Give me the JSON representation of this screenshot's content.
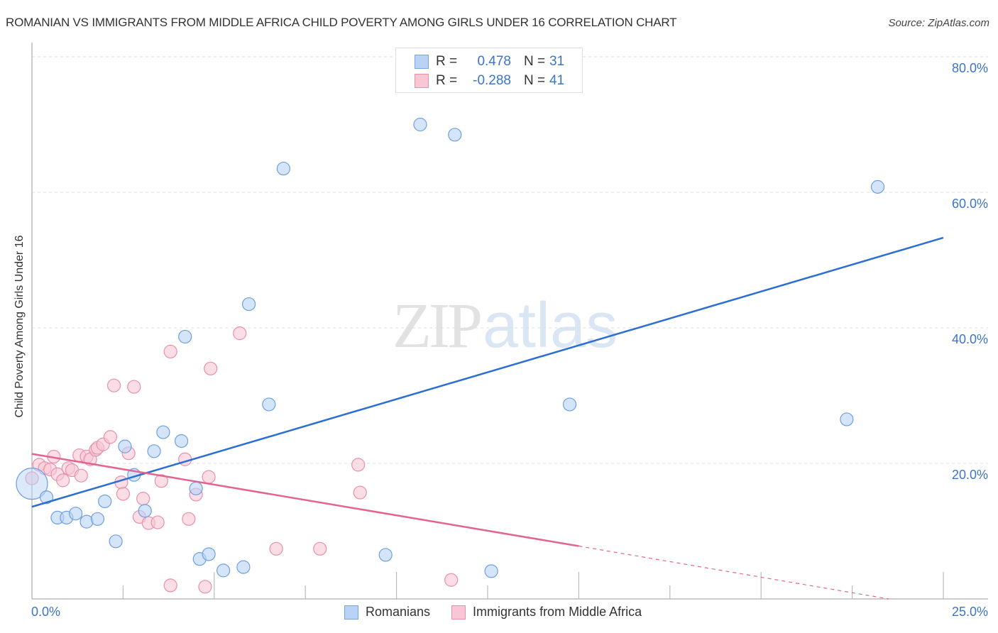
{
  "header": {
    "title": "ROMANIAN VS IMMIGRANTS FROM MIDDLE AFRICA CHILD POVERTY AMONG GIRLS UNDER 16 CORRELATION CHART",
    "source": "Source: ZipAtlas.com"
  },
  "legend_box": {
    "rows": [
      {
        "r_label": "R =",
        "r_value": "0.478",
        "n_label": "N =",
        "n_value": "31",
        "color": "#b9d3f5",
        "border": "#7aa6e0"
      },
      {
        "r_label": "R =",
        "r_value": "-0.288",
        "n_label": "N =",
        "n_value": "41",
        "color": "#f9c6d5",
        "border": "#e890ab"
      }
    ]
  },
  "axes": {
    "ylabel": "Child Poverty Among Girls Under 16",
    "yticks": [
      "80.0%",
      "60.0%",
      "40.0%",
      "20.0%"
    ],
    "xtick_left": "0.0%",
    "xtick_right": "25.0%"
  },
  "bottom_legend": {
    "series": [
      {
        "label": "Romanians",
        "color": "#b9d3f5",
        "border": "#7aa6e0"
      },
      {
        "label": "Immigrants from Middle Africa",
        "color": "#f9c6d5",
        "border": "#e890ab"
      }
    ]
  },
  "watermark": {
    "zip": "ZIP",
    "atlas": "atlas"
  },
  "colors": {
    "blue_line": "#2c6fd1",
    "pink_line": "#e36490",
    "blue_fill": "#b9d3f5",
    "blue_stroke": "#6e9fe0",
    "pink_fill": "#f9c6d5",
    "pink_stroke": "#e890ab",
    "tick_text": "#3b74c8"
  },
  "chart_data": {
    "type": "scatter",
    "title": "ROMANIAN VS IMMIGRANTS FROM MIDDLE AFRICA CHILD POVERTY AMONG GIRLS UNDER 16 CORRELATION CHART",
    "xlabel": "",
    "ylabel": "Child Poverty Among Girls Under 16",
    "xlim": [
      0,
      25
    ],
    "ylim": [
      0,
      80
    ],
    "x_unit": "%",
    "y_unit": "%",
    "grid": "horizontal dashed",
    "legend_position": "bottom-center",
    "series": [
      {
        "name": "Romanians",
        "R": 0.478,
        "N": 31,
        "points": [
          [
            0.0,
            17.0
          ],
          [
            0.4,
            15.0
          ],
          [
            0.7,
            12.0
          ],
          [
            0.95,
            12.0
          ],
          [
            1.2,
            12.6
          ],
          [
            1.5,
            11.4
          ],
          [
            1.8,
            11.8
          ],
          [
            2.0,
            14.4
          ],
          [
            2.3,
            8.5
          ],
          [
            2.55,
            22.5
          ],
          [
            2.8,
            18.3
          ],
          [
            3.1,
            13.0
          ],
          [
            3.35,
            21.8
          ],
          [
            3.6,
            24.6
          ],
          [
            4.1,
            23.3
          ],
          [
            4.2,
            38.7
          ],
          [
            4.5,
            16.3
          ],
          [
            4.6,
            5.9
          ],
          [
            4.85,
            6.6
          ],
          [
            5.25,
            4.2
          ],
          [
            5.8,
            4.7
          ],
          [
            5.95,
            43.5
          ],
          [
            6.5,
            28.7
          ],
          [
            6.9,
            63.5
          ],
          [
            9.7,
            6.5
          ],
          [
            10.65,
            70.0
          ],
          [
            11.6,
            68.5
          ],
          [
            12.6,
            4.1
          ],
          [
            14.75,
            28.7
          ],
          [
            22.35,
            26.5
          ],
          [
            23.2,
            60.8
          ]
        ],
        "trendline": {
          "x": [
            0,
            25
          ],
          "y": [
            13.6,
            53.3
          ]
        }
      },
      {
        "name": "Immigrants from Middle Africa",
        "R": -0.288,
        "N": 41,
        "points": [
          [
            0.0,
            17.8
          ],
          [
            0.2,
            19.8
          ],
          [
            0.35,
            19.3
          ],
          [
            0.5,
            19.1
          ],
          [
            0.6,
            21.0
          ],
          [
            0.7,
            18.4
          ],
          [
            0.85,
            17.5
          ],
          [
            1.0,
            19.3
          ],
          [
            1.1,
            19.0
          ],
          [
            1.3,
            21.2
          ],
          [
            1.35,
            18.2
          ],
          [
            1.5,
            21.0
          ],
          [
            1.6,
            20.6
          ],
          [
            1.75,
            22.0
          ],
          [
            1.8,
            22.3
          ],
          [
            1.95,
            22.8
          ],
          [
            2.15,
            23.9
          ],
          [
            2.25,
            31.5
          ],
          [
            2.45,
            17.2
          ],
          [
            2.5,
            15.5
          ],
          [
            2.65,
            21.5
          ],
          [
            2.8,
            31.3
          ],
          [
            2.95,
            12.1
          ],
          [
            3.05,
            14.8
          ],
          [
            3.2,
            11.2
          ],
          [
            3.45,
            11.3
          ],
          [
            3.55,
            17.4
          ],
          [
            3.8,
            2.0
          ],
          [
            3.8,
            36.5
          ],
          [
            4.2,
            20.6
          ],
          [
            4.3,
            11.8
          ],
          [
            4.5,
            15.4
          ],
          [
            4.75,
            1.8
          ],
          [
            4.85,
            18.0
          ],
          [
            4.9,
            34.0
          ],
          [
            5.7,
            39.2
          ],
          [
            6.7,
            7.4
          ],
          [
            7.9,
            7.4
          ],
          [
            8.95,
            19.8
          ],
          [
            9.0,
            15.7
          ],
          [
            11.5,
            2.8
          ]
        ],
        "trendline": {
          "x": [
            0,
            15
          ],
          "y": [
            21.4,
            7.8
          ],
          "dashed_extension": {
            "x": [
              15,
              23.5
            ],
            "y": [
              7.8,
              0.0
            ]
          }
        }
      }
    ]
  }
}
